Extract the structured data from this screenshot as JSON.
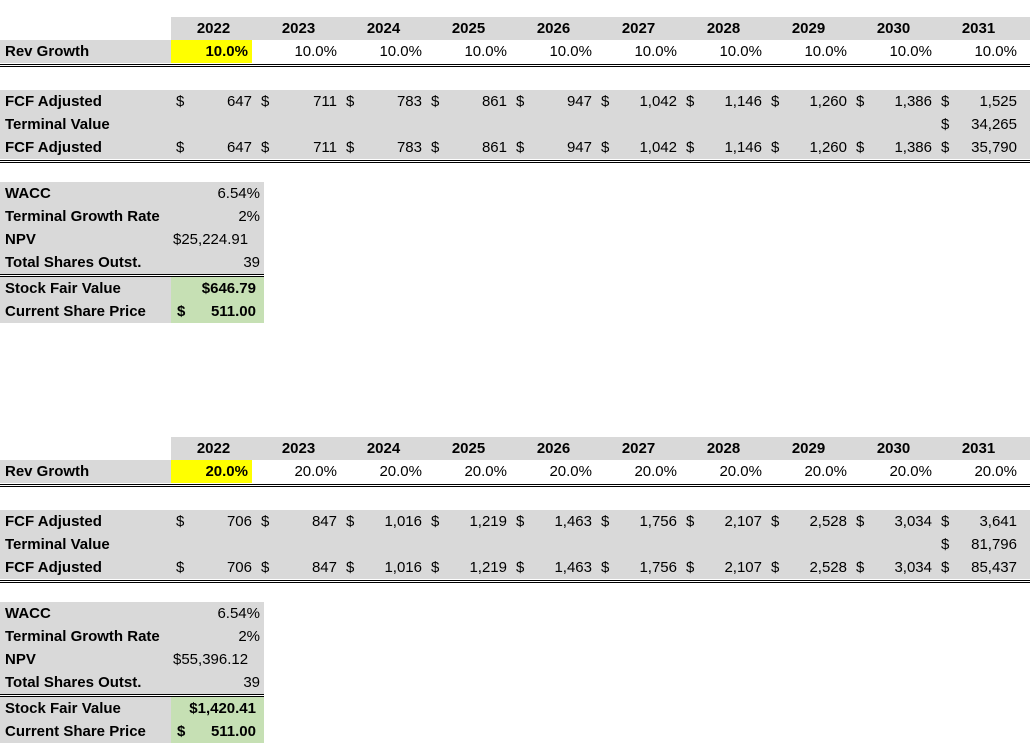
{
  "sections": [
    {
      "years": [
        "2022",
        "2023",
        "2024",
        "2025",
        "2026",
        "2027",
        "2028",
        "2029",
        "2030",
        "2031"
      ],
      "rev_growth_label": "Rev Growth",
      "rev_growth": [
        "10.0%",
        "10.0%",
        "10.0%",
        "10.0%",
        "10.0%",
        "10.0%",
        "10.0%",
        "10.0%",
        "10.0%",
        "10.0%"
      ],
      "fcf_label": "FCF Adjusted",
      "fcf": [
        "647",
        "711",
        "783",
        "861",
        "947",
        "1,042",
        "1,146",
        "1,260",
        "1,386",
        "1,525"
      ],
      "tv_label": "Terminal Value",
      "tv": "34,265",
      "fcf2_label": "FCF Adjusted",
      "fcf2": [
        "647",
        "711",
        "783",
        "861",
        "947",
        "1,042",
        "1,146",
        "1,260",
        "1,386",
        "35,790"
      ],
      "currency": "$",
      "summary": [
        {
          "label": "WACC",
          "value": "6.54%"
        },
        {
          "label": "Terminal Growth Rate",
          "value": "2%"
        },
        {
          "label": "NPV",
          "value": "$25,224.91"
        },
        {
          "label": "Total Shares Outst.",
          "value": "39"
        }
      ],
      "fair_value_label": "Stock Fair Value",
      "fair_value": "$646.79",
      "price_label": "Current Share Price",
      "price_currency": "$",
      "price": "511.00"
    },
    {
      "years": [
        "2022",
        "2023",
        "2024",
        "2025",
        "2026",
        "2027",
        "2028",
        "2029",
        "2030",
        "2031"
      ],
      "rev_growth_label": "Rev Growth",
      "rev_growth": [
        "20.0%",
        "20.0%",
        "20.0%",
        "20.0%",
        "20.0%",
        "20.0%",
        "20.0%",
        "20.0%",
        "20.0%",
        "20.0%"
      ],
      "fcf_label": "FCF Adjusted",
      "fcf": [
        "706",
        "847",
        "1,016",
        "1,219",
        "1,463",
        "1,756",
        "2,107",
        "2,528",
        "3,034",
        "3,641"
      ],
      "tv_label": "Terminal Value",
      "tv": "81,796",
      "fcf2_label": "FCF Adjusted",
      "fcf2": [
        "706",
        "847",
        "1,016",
        "1,219",
        "1,463",
        "1,756",
        "2,107",
        "2,528",
        "3,034",
        "85,437"
      ],
      "currency": "$",
      "summary": [
        {
          "label": "WACC",
          "value": "6.54%"
        },
        {
          "label": "Terminal Growth Rate",
          "value": "2%"
        },
        {
          "label": "NPV",
          "value": "$55,396.12"
        },
        {
          "label": "Total Shares Outst.",
          "value": "39"
        }
      ],
      "fair_value_label": "Stock Fair Value",
      "fair_value": "$1,420.41",
      "price_label": "Current Share Price",
      "price_currency": "$",
      "price": "511.00"
    }
  ]
}
